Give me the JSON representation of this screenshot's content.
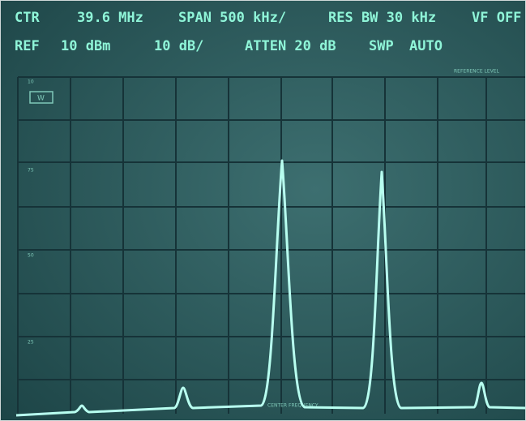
{
  "header": {
    "row1": [
      "CTR",
      "39.6 MHz",
      "SPAN 500 kHz/",
      "RES BW 30 kHz",
      "VF OFF"
    ],
    "row2": [
      "REF",
      "10 dBm",
      "10 dB/",
      "ATTEN 20 dB",
      "SWP",
      "AUTO"
    ]
  },
  "screen": {
    "reference_label": "REFERENCE LEVEL",
    "center_label": "CENTER FREQUENCY",
    "marker": "W",
    "scale_labels": [
      "10",
      "75",
      "50",
      "25"
    ]
  }
}
